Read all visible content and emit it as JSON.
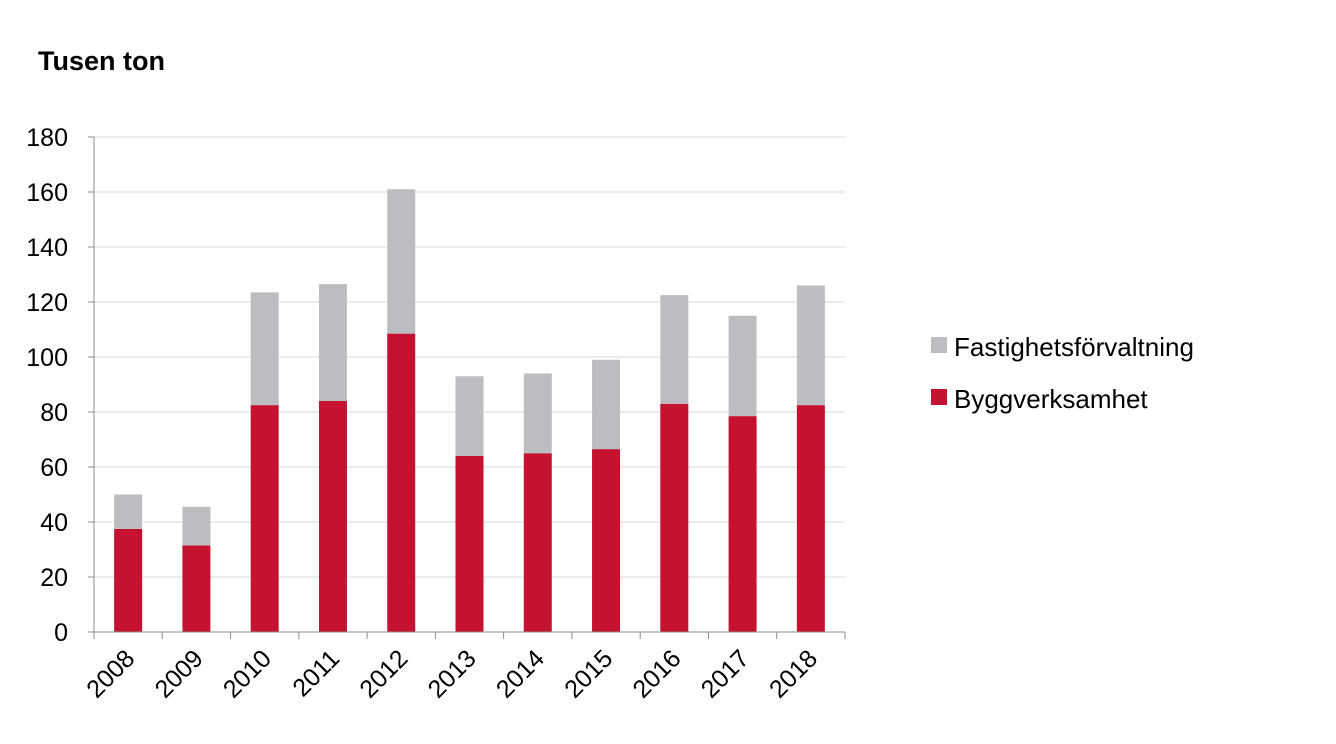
{
  "chart_data": {
    "type": "bar",
    "stacked": true,
    "title": "Tusen ton",
    "xlabel": "",
    "ylabel": "Tusen ton",
    "categories": [
      "2008",
      "2009",
      "2010",
      "2011",
      "2012",
      "2013",
      "2014",
      "2015",
      "2016",
      "2017",
      "2018"
    ],
    "series": [
      {
        "name": "Byggverksamhet",
        "color": "#c41230",
        "values": [
          37.5,
          31.5,
          82.5,
          84,
          108.5,
          64,
          65,
          66.5,
          83,
          78.5,
          82.5
        ]
      },
      {
        "name": "Fastighetsförvaltning",
        "color": "#bcbdc0",
        "values": [
          12.5,
          14,
          41,
          42.5,
          52.5,
          29,
          29,
          32.5,
          39.5,
          36.5,
          43.5
        ]
      }
    ],
    "ylim": [
      0,
      180
    ],
    "yticks": [
      0,
      20,
      40,
      60,
      80,
      100,
      120,
      140,
      160,
      180
    ],
    "grid": true,
    "legend_position": "right",
    "legend": [
      "Fastighetsförvaltning",
      "Byggverksamhet"
    ]
  },
  "colors": {
    "grid": "#d9d9d9",
    "axis": "#8c8c8c"
  }
}
